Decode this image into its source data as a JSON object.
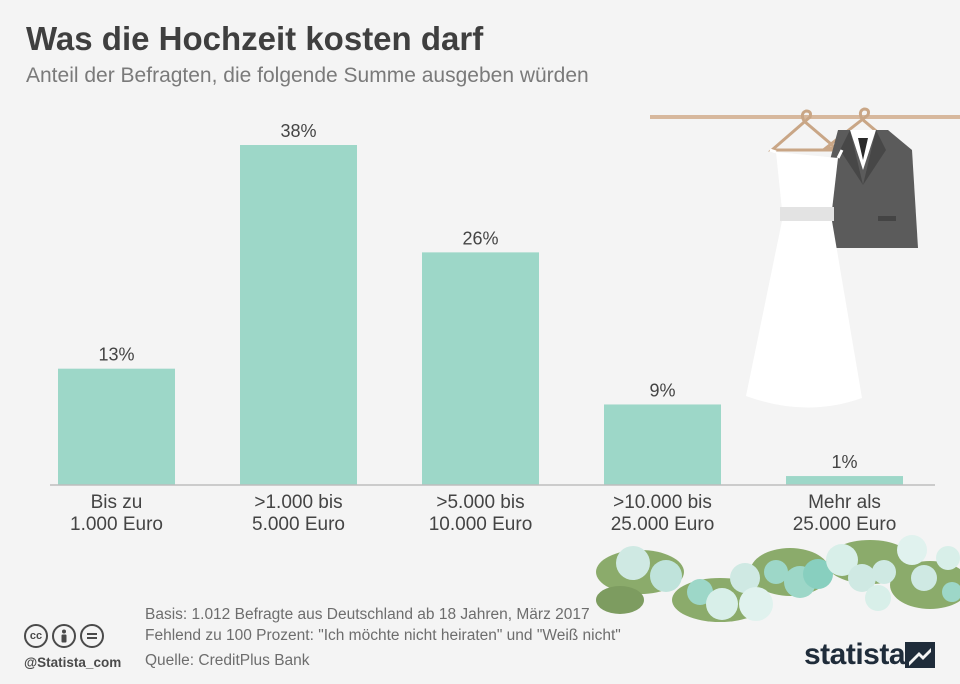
{
  "title": "Was die Hochzeit kosten darf",
  "subtitle": "Anteil der Befragten, die folgende Summe ausgeben würden",
  "chart_data": {
    "type": "bar",
    "categories": [
      [
        "Bis zu",
        "1.000 Euro"
      ],
      [
        ">1.000 bis",
        "5.000 Euro"
      ],
      [
        ">5.000 bis",
        "10.000 Euro"
      ],
      [
        ">10.000 bis",
        "25.000 Euro"
      ],
      [
        "Mehr als",
        "25.000 Euro"
      ]
    ],
    "values": [
      13,
      38,
      26,
      9,
      1
    ],
    "value_suffix": "%",
    "ylim": [
      0,
      38
    ],
    "bar_color": "#9dd7c8",
    "grid": false,
    "legend": "none"
  },
  "footer": {
    "basis": "Basis: 1.012 Befragte aus Deutschland ab 18 Jahren, März 2017",
    "note": "Fehlend zu 100 Prozent: \"Ich möchte nicht heiraten\" und \"Weiß nicht\"",
    "source": "Quelle: CreditPlus Bank",
    "handle": "@Statista_com",
    "brand": "statista"
  },
  "icons": [
    "cc-icon",
    "by-icon",
    "nd-icon",
    "statista-logo-icon",
    "dress-icon",
    "suit-icon",
    "hanger-icon",
    "flowers-decoration"
  ]
}
